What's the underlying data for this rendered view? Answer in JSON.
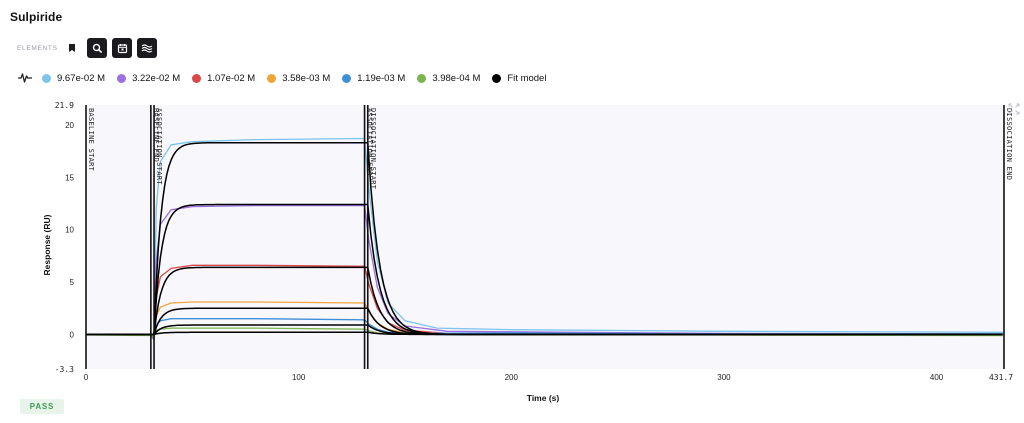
{
  "page": {
    "title": "Sulpiride"
  },
  "toolbar": {
    "elements_label": "ELEMENTS",
    "tools": [
      {
        "icon": "bookmark-icon",
        "active": false
      },
      {
        "icon": "zoom-icon",
        "active": true
      },
      {
        "icon": "calendar-icon",
        "active": true
      },
      {
        "icon": "waves-icon",
        "active": true
      }
    ]
  },
  "legend": {
    "icon": "pulse-icon",
    "items": [
      {
        "label": "9.67e-02 M",
        "color": "#7cc4ea"
      },
      {
        "label": "3.22e-02 M",
        "color": "#9b6fe0"
      },
      {
        "label": "1.07e-02 M",
        "color": "#d9494b"
      },
      {
        "label": "3.58e-03 M",
        "color": "#f0a43a"
      },
      {
        "label": "1.19e-03 M",
        "color": "#3f8fd8"
      },
      {
        "label": "3.98e-04 M",
        "color": "#7cb450"
      },
      {
        "label": "Fit model",
        "color": "#000000"
      }
    ]
  },
  "chart_data": {
    "type": "line",
    "xlabel": "Time (s)",
    "ylabel": "Response (RU)",
    "xlim": [
      0,
      431.7
    ],
    "ylim": [
      -3.3,
      21.9
    ],
    "x_ticks": [
      0,
      100,
      200,
      300,
      400
    ],
    "x_tick_labels": [
      "0",
      "100",
      "200",
      "300",
      "400",
      "431.7"
    ],
    "y_ticks": [
      0,
      5,
      10,
      15,
      20
    ],
    "y_tick_labels": [
      "-3.3",
      "0",
      "5",
      "10",
      "15",
      "20",
      "21.9"
    ],
    "grid": false,
    "legend_position": "top",
    "phases": [
      {
        "label": "BASELINE START",
        "x": 0
      },
      {
        "label": "BASELINE END",
        "x": 30.5
      },
      {
        "label": "ASSOCIATION START",
        "x": 32
      },
      {
        "label": "ASSOCIATION END",
        "x": 131
      },
      {
        "label": "DISSOCIATION START",
        "x": 132.5
      },
      {
        "label": "DISSOCIATION END",
        "x": 431.7
      }
    ],
    "series": [
      {
        "name": "9.67e-02 M",
        "color": "#7cc4ea",
        "points": [
          [
            0,
            0
          ],
          [
            30,
            0
          ],
          [
            32,
            -0.5
          ],
          [
            33,
            12
          ],
          [
            35,
            16.5
          ],
          [
            40,
            18.1
          ],
          [
            50,
            18.4
          ],
          [
            80,
            18.6
          ],
          [
            131,
            18.7
          ],
          [
            133,
            14
          ],
          [
            137,
            7
          ],
          [
            142,
            3
          ],
          [
            150,
            1.3
          ],
          [
            165,
            0.6
          ],
          [
            200,
            0.45
          ],
          [
            300,
            0.3
          ],
          [
            431.7,
            0.2
          ]
        ]
      },
      {
        "name": "3.22e-02 M",
        "color": "#9b6fe0",
        "points": [
          [
            0,
            0
          ],
          [
            30,
            0
          ],
          [
            32,
            -0.5
          ],
          [
            33,
            7
          ],
          [
            35,
            10.5
          ],
          [
            40,
            11.9
          ],
          [
            50,
            12.2
          ],
          [
            80,
            12.3
          ],
          [
            131,
            12.3
          ],
          [
            133,
            9
          ],
          [
            137,
            4.5
          ],
          [
            142,
            2
          ],
          [
            150,
            0.8
          ],
          [
            170,
            0.3
          ],
          [
            300,
            0.1
          ],
          [
            431.7,
            0.05
          ]
        ]
      },
      {
        "name": "1.07e-02 M",
        "color": "#d9494b",
        "points": [
          [
            0,
            0
          ],
          [
            30,
            0
          ],
          [
            32,
            -0.3
          ],
          [
            33,
            3.5
          ],
          [
            35,
            5.5
          ],
          [
            40,
            6.3
          ],
          [
            50,
            6.6
          ],
          [
            80,
            6.6
          ],
          [
            131,
            6.5
          ],
          [
            133,
            4.8
          ],
          [
            137,
            2.5
          ],
          [
            142,
            1.1
          ],
          [
            150,
            0.4
          ],
          [
            170,
            0.1
          ],
          [
            300,
            0
          ],
          [
            431.7,
            0
          ]
        ]
      },
      {
        "name": "3.58e-03 M",
        "color": "#f0a43a",
        "points": [
          [
            0,
            0
          ],
          [
            30,
            0
          ],
          [
            32,
            -0.2
          ],
          [
            33,
            1.8
          ],
          [
            35,
            2.6
          ],
          [
            40,
            3
          ],
          [
            50,
            3.1
          ],
          [
            80,
            3.1
          ],
          [
            131,
            3
          ],
          [
            133,
            2.2
          ],
          [
            137,
            1.1
          ],
          [
            142,
            0.5
          ],
          [
            150,
            0.15
          ],
          [
            170,
            0
          ],
          [
            300,
            -0.05
          ],
          [
            431.7,
            -0.1
          ]
        ]
      },
      {
        "name": "1.19e-03 M",
        "color": "#3f8fd8",
        "points": [
          [
            0,
            0
          ],
          [
            30,
            0
          ],
          [
            32,
            -0.2
          ],
          [
            33,
            0.9
          ],
          [
            35,
            1.3
          ],
          [
            40,
            1.5
          ],
          [
            50,
            1.5
          ],
          [
            80,
            1.5
          ],
          [
            131,
            1.4
          ],
          [
            133,
            1
          ],
          [
            137,
            0.5
          ],
          [
            142,
            0.2
          ],
          [
            150,
            0.1
          ],
          [
            200,
            0.15
          ],
          [
            300,
            0.05
          ],
          [
            431.7,
            0.05
          ]
        ]
      },
      {
        "name": "3.98e-04 M",
        "color": "#7cb450",
        "points": [
          [
            0,
            -0.05
          ],
          [
            30,
            -0.1
          ],
          [
            32,
            -0.2
          ],
          [
            33,
            0.4
          ],
          [
            35,
            0.5
          ],
          [
            40,
            0.6
          ],
          [
            50,
            0.6
          ],
          [
            80,
            0.6
          ],
          [
            131,
            0.5
          ],
          [
            133,
            0.35
          ],
          [
            137,
            0.15
          ],
          [
            142,
            0.05
          ],
          [
            150,
            0
          ],
          [
            300,
            -0.05
          ],
          [
            431.7,
            -0.1
          ]
        ]
      }
    ],
    "fit_model": {
      "name": "Fit model",
      "color": "#000000",
      "plateaus": [
        18.3,
        12.4,
        6.4,
        2.5,
        0.9,
        0.2
      ],
      "association_start": 32,
      "dissociation_start": 132.5,
      "ka_rate": 0.3,
      "kd_rate": 0.18
    }
  },
  "status": {
    "label": "PASS"
  }
}
